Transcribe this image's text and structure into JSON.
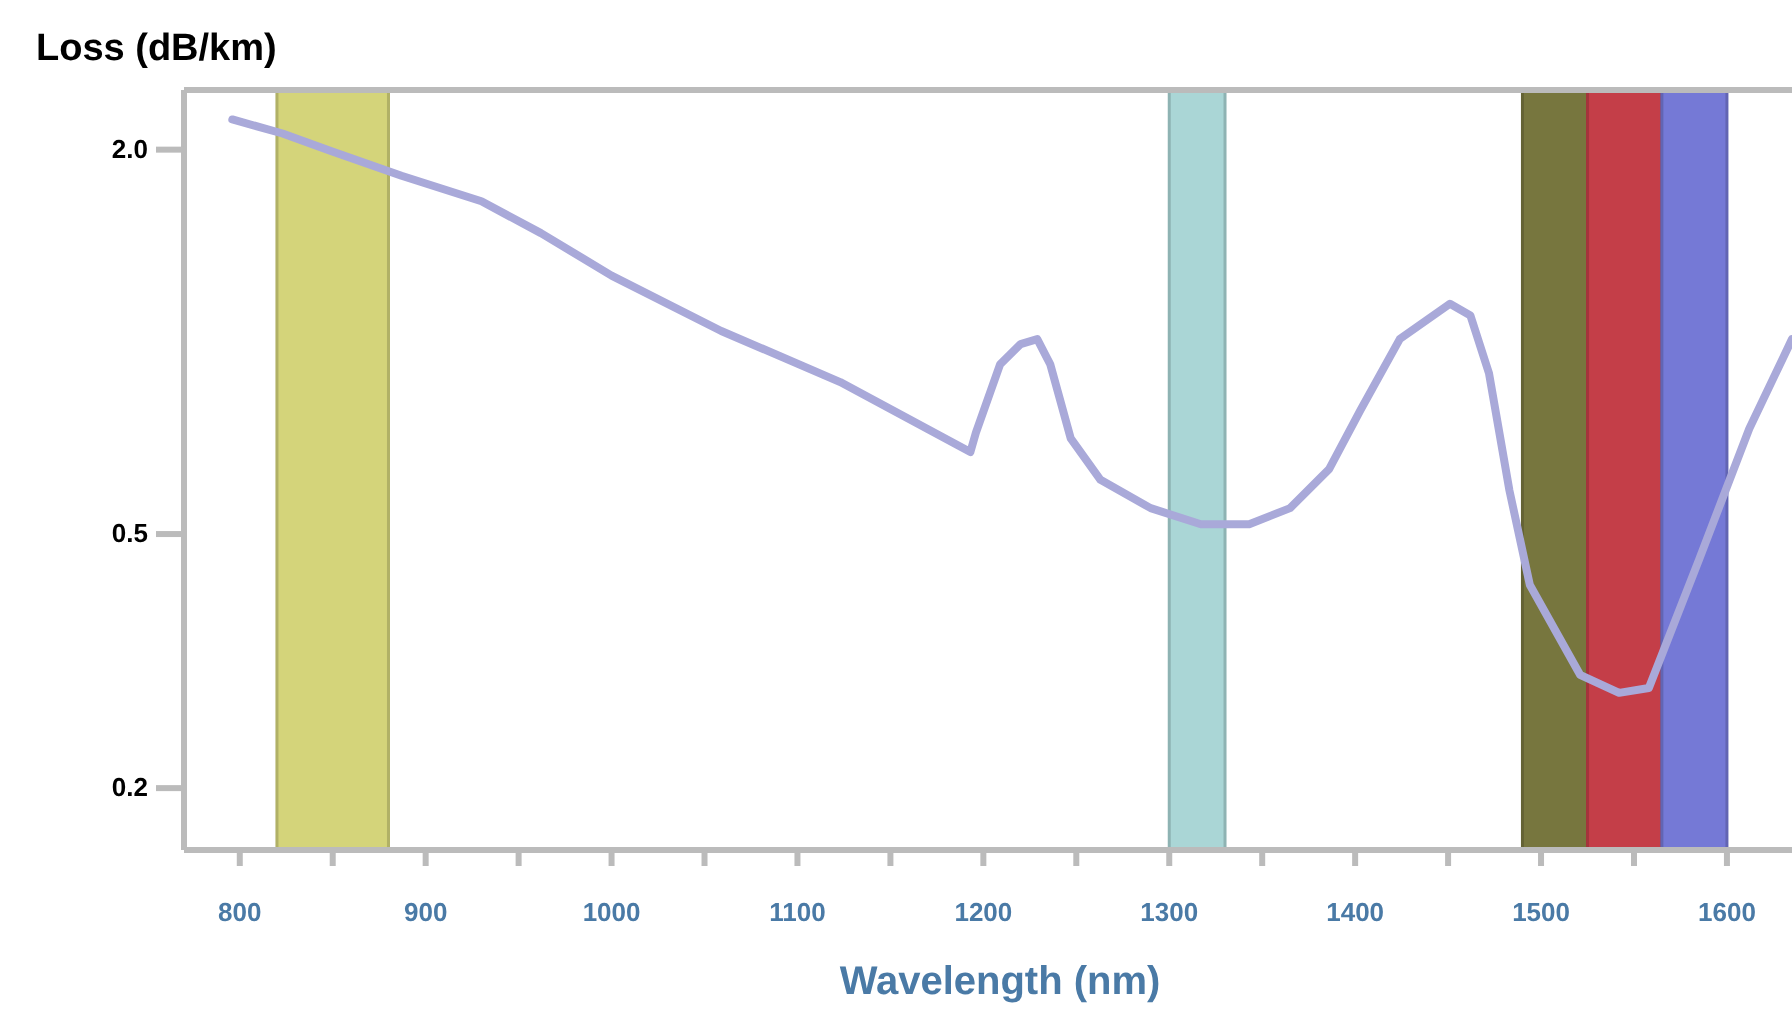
{
  "chart_data": {
    "type": "line",
    "xlabel": "Wavelength (nm)",
    "ylabel": "Loss (dB/km)",
    "x": [
      796,
      823,
      849,
      887,
      930,
      962,
      1000,
      1059,
      1123,
      1193,
      1196,
      1209,
      1220,
      1229,
      1236,
      1247,
      1263,
      1290,
      1317,
      1343,
      1365,
      1386,
      1403,
      1424,
      1451,
      1462,
      1472,
      1483,
      1494,
      1521,
      1542,
      1558,
      1585,
      1612,
      1635
    ],
    "series": [
      {
        "color": "#a9a9d9",
        "values": [
          2.23,
          2.12,
          1.99,
          1.82,
          1.66,
          1.48,
          1.27,
          1.04,
          0.865,
          0.672,
          0.721,
          0.922,
          0.992,
          1.01,
          0.922,
          0.706,
          0.608,
          0.549,
          0.518,
          0.518,
          0.549,
          0.632,
          0.783,
          1.01,
          1.147,
          1.1,
          0.893,
          0.585,
          0.416,
          0.301,
          0.282,
          0.287,
          0.456,
          0.731,
          1.01
        ]
      }
    ],
    "xlim": [
      770,
      1635
    ],
    "ylim": [
      0.16,
      2.48
    ],
    "log": true,
    "xticks": [
      800,
      {
        "value": 850,
        "label": null
      },
      900,
      {
        "value": 950,
        "label": null
      },
      1000,
      {
        "value": 1050,
        "label": null
      },
      1100,
      {
        "value": 1150,
        "label": null
      },
      1200,
      {
        "value": 1250,
        "label": null
      },
      1300,
      {
        "value": 1350,
        "label": null
      },
      1400,
      {
        "value": 1450,
        "label": null
      },
      1500,
      {
        "value": 1550,
        "label": null
      },
      1600
    ],
    "yticks": [
      {
        "value": 2.0,
        "label": "2.0"
      },
      0.5,
      0.2
    ],
    "bands": [
      {
        "axis": "x",
        "from": 820,
        "to": 880,
        "color": "#d4d47a"
      },
      {
        "axis": "x",
        "from": 1300,
        "to": 1330,
        "color": "#aad6d6"
      },
      {
        "axis": "x",
        "from": 1490,
        "to": 1525,
        "color": "#77763e"
      },
      {
        "axis": "x",
        "from": 1525,
        "to": 1565,
        "color": "#c43e48"
      },
      {
        "axis": "x",
        "from": 1565,
        "to": 1600,
        "color": "#7579d6"
      }
    ],
    "grid": false,
    "marker": "none",
    "line_style": "solid"
  }
}
